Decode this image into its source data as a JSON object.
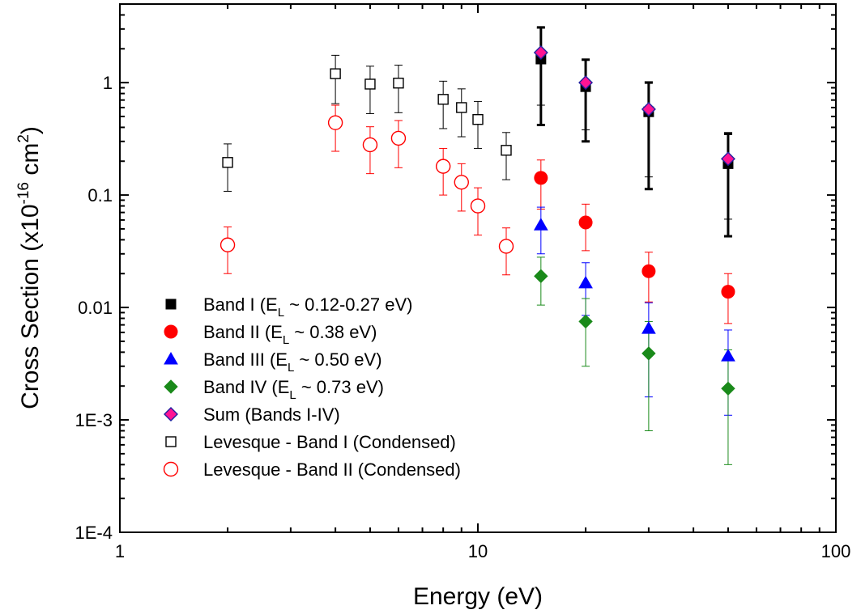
{
  "chart_data": {
    "type": "scatter",
    "xlabel": "Energy (eV)",
    "ylabel": {
      "main": "Cross Section (x10",
      "exp1": "-16",
      "mid": " cm",
      "exp2": "2",
      "end": ")"
    },
    "x_scale": "log",
    "y_scale": "log",
    "xlim": [
      1,
      100
    ],
    "ylim": [
      0.0001,
      5
    ],
    "x_ticks": [
      {
        "value": 1,
        "label": "1"
      },
      {
        "value": 10,
        "label": "10"
      },
      {
        "value": 100,
        "label": "100"
      }
    ],
    "y_ticks": [
      {
        "value": 0.0001,
        "label": "1E-4"
      },
      {
        "value": 0.001,
        "label": "1E-3"
      },
      {
        "value": 0.01,
        "label": "0.01"
      },
      {
        "value": 0.1,
        "label": "0.1"
      },
      {
        "value": 1,
        "label": "1"
      }
    ],
    "grid": false,
    "legend_position": "bottom-left",
    "series": [
      {
        "name": "Band I (E_L ~ 0.12-0.27 eV)",
        "legend": {
          "pre": "Band I (E",
          "sub": "L",
          "post": " ~ 0.12-0.27 eV)"
        },
        "marker": "square",
        "filled": true,
        "color": "#000000",
        "edge": "#000000",
        "errcolor": "#000000",
        "errwidth": 3,
        "points": [
          {
            "x": 15,
            "y": 1.62,
            "lo": 0.42,
            "hi": 3.1
          },
          {
            "x": 20,
            "y": 0.92,
            "lo": 0.3,
            "hi": 1.6
          },
          {
            "x": 30,
            "y": 0.55,
            "lo": 0.113,
            "hi": 1.0
          },
          {
            "x": 50,
            "y": 0.19,
            "lo": 0.043,
            "hi": 0.35
          }
        ]
      },
      {
        "name": "Band II (E_L ~ 0.38 eV)",
        "legend": {
          "pre": "Band II (E",
          "sub": "L",
          "post": " ~ 0.38 eV)"
        },
        "marker": "circle",
        "filled": true,
        "color": "#ff0000",
        "edge": "#ff0000",
        "errcolor": "#ff0000",
        "errwidth": 1,
        "points": [
          {
            "x": 15,
            "y": 0.142,
            "lo": 0.075,
            "hi": 0.205
          },
          {
            "x": 20,
            "y": 0.057,
            "lo": 0.032,
            "hi": 0.083
          },
          {
            "x": 30,
            "y": 0.021,
            "lo": 0.0112,
            "hi": 0.031
          },
          {
            "x": 50,
            "y": 0.0138,
            "lo": 0.0072,
            "hi": 0.02
          }
        ]
      },
      {
        "name": "Band III (E_L ~ 0.50 eV)",
        "legend": {
          "pre": "Band III (E",
          "sub": "L",
          "post": " ~ 0.50 eV)"
        },
        "marker": "triangle",
        "filled": true,
        "color": "#0000ff",
        "edge": "#0000ff",
        "errcolor": "#0000ff",
        "errwidth": 1,
        "points": [
          {
            "x": 15,
            "y": 0.054,
            "lo": 0.03,
            "hi": 0.078
          },
          {
            "x": 20,
            "y": 0.0165,
            "lo": 0.0085,
            "hi": 0.025
          },
          {
            "x": 30,
            "y": 0.0065,
            "lo": 0.0016,
            "hi": 0.011
          },
          {
            "x": 50,
            "y": 0.0037,
            "lo": 0.0011,
            "hi": 0.0063
          }
        ]
      },
      {
        "name": "Band IV (E_L ~ 0.73 eV)",
        "legend": {
          "pre": "Band IV (E",
          "sub": "L",
          "post": " ~ 0.73 eV)"
        },
        "marker": "diamond",
        "filled": true,
        "color": "#1a8a1a",
        "edge": "#1a8a1a",
        "errcolor": "#1a8a1a",
        "errwidth": 1,
        "points": [
          {
            "x": 15,
            "y": 0.019,
            "lo": 0.0105,
            "hi": 0.028
          },
          {
            "x": 20,
            "y": 0.0075,
            "lo": 0.003,
            "hi": 0.012
          },
          {
            "x": 30,
            "y": 0.0039,
            "lo": 0.0008,
            "hi": 0.0075
          },
          {
            "x": 50,
            "y": 0.0019,
            "lo": 0.0004,
            "hi": 0.0042
          }
        ]
      },
      {
        "name": "Sum (Bands I-IV)",
        "legend": {
          "pre": "Sum (Bands I-IV)",
          "sub": "",
          "post": ""
        },
        "marker": "diamond",
        "filled": true,
        "color": "#ff1493",
        "edge": "#2020a0",
        "errcolor": "#000000",
        "errwidth": 1,
        "points": [
          {
            "x": 15,
            "y": 1.85,
            "lo": 0.63,
            "hi": 3.05
          },
          {
            "x": 20,
            "y": 1.0,
            "lo": 0.38,
            "hi": 1.62
          },
          {
            "x": 30,
            "y": 0.58,
            "lo": 0.145,
            "hi": 1.02
          },
          {
            "x": 50,
            "y": 0.21,
            "lo": 0.061,
            "hi": 0.36
          }
        ]
      },
      {
        "name": "Levesque - Band I (Condensed)",
        "legend": {
          "pre": "Levesque - Band I (Condensed)",
          "sub": "",
          "post": ""
        },
        "marker": "square",
        "filled": false,
        "color": "#000000",
        "edge": "#000000",
        "errcolor": "#000000",
        "errwidth": 1,
        "points": [
          {
            "x": 2,
            "y": 0.195,
            "lo": 0.108,
            "hi": 0.285
          },
          {
            "x": 4,
            "y": 1.2,
            "lo": 0.65,
            "hi": 1.75
          },
          {
            "x": 5,
            "y": 0.97,
            "lo": 0.53,
            "hi": 1.4
          },
          {
            "x": 6,
            "y": 0.99,
            "lo": 0.54,
            "hi": 1.43
          },
          {
            "x": 8,
            "y": 0.71,
            "lo": 0.39,
            "hi": 1.03
          },
          {
            "x": 9,
            "y": 0.6,
            "lo": 0.33,
            "hi": 0.88
          },
          {
            "x": 10,
            "y": 0.47,
            "lo": 0.26,
            "hi": 0.68
          },
          {
            "x": 12,
            "y": 0.25,
            "lo": 0.137,
            "hi": 0.36
          }
        ]
      },
      {
        "name": "Levesque - Band II (Condensed)",
        "legend": {
          "pre": "Levesque - Band II (Condensed)",
          "sub": "",
          "post": ""
        },
        "marker": "circle",
        "filled": false,
        "color": "#ff0000",
        "edge": "#ff0000",
        "errcolor": "#ff0000",
        "errwidth": 1,
        "points": [
          {
            "x": 2,
            "y": 0.036,
            "lo": 0.02,
            "hi": 0.052
          },
          {
            "x": 4,
            "y": 0.44,
            "lo": 0.245,
            "hi": 0.63
          },
          {
            "x": 5,
            "y": 0.28,
            "lo": 0.155,
            "hi": 0.405
          },
          {
            "x": 6,
            "y": 0.32,
            "lo": 0.175,
            "hi": 0.46
          },
          {
            "x": 8,
            "y": 0.18,
            "lo": 0.1,
            "hi": 0.26
          },
          {
            "x": 9,
            "y": 0.13,
            "lo": 0.072,
            "hi": 0.19
          },
          {
            "x": 10,
            "y": 0.08,
            "lo": 0.044,
            "hi": 0.116
          },
          {
            "x": 12,
            "y": 0.035,
            "lo": 0.0195,
            "hi": 0.051
          }
        ]
      }
    ]
  }
}
